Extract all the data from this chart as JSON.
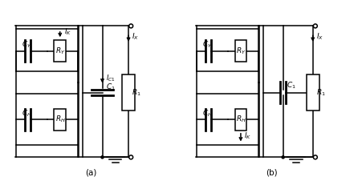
{
  "label_a": "(a)",
  "label_b": "(b)",
  "bg_color": "#ffffff",
  "line_color": "#000000",
  "line_width": 1.1,
  "font_size": 6.5,
  "fig_width": 4.51,
  "fig_height": 2.31
}
